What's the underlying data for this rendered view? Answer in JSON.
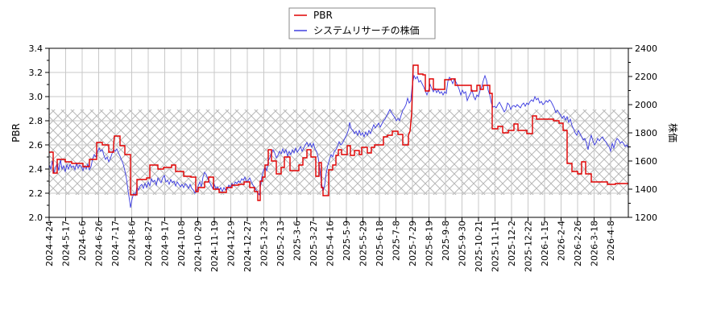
{
  "chart_data": {
    "type": "line",
    "title": "",
    "legend": {
      "position": "top-center",
      "entries": [
        {
          "label": "PBR",
          "color": "#e00000"
        },
        {
          "label": "システムリサーチの株価",
          "color": "#4040e0"
        }
      ]
    },
    "y_left": {
      "label": "PBR",
      "range": [
        2.0,
        3.4
      ],
      "ticks": [
        "2.0",
        "2.2",
        "2.4",
        "2.6",
        "2.8",
        "3.0",
        "3.2",
        "3.4"
      ]
    },
    "y_right": {
      "label": "株価",
      "range": [
        1200,
        2400
      ],
      "ticks": [
        "1200",
        "1400",
        "1600",
        "1800",
        "2000",
        "2200",
        "2400"
      ]
    },
    "x_ticks": [
      "2024-4-24",
      "2024-5-17",
      "2024-6-6",
      "2024-6-26",
      "2024-7-17",
      "2024-8-6",
      "2024-8-27",
      "2024-9-17",
      "2024-10-8",
      "2024-10-29",
      "2024-11-19",
      "2024-12-9",
      "2024-12-27",
      "2025-1-23",
      "2025-2-13",
      "2025-3-6",
      "2025-3-27",
      "2025-4-16",
      "2025-5-9",
      "2025-5-29",
      "2025-6-18",
      "2025-7-8",
      "2025-7-29",
      "2025-8-19",
      "2025-9-8",
      "2025-9-30",
      "2025-10-21",
      "2025-11-11",
      "2025-12-2",
      "2025-12-22",
      "2026-1-15",
      "2026-2-4",
      "2026-2-26",
      "2026-3-18",
      "2026-4-8"
    ],
    "grid": true,
    "hatched_band": {
      "pbr_range": [
        2.18,
        2.89
      ],
      "note": "shaded PBR reference range"
    },
    "series": [
      {
        "name": "PBR",
        "axis": "left",
        "color": "#e00000",
        "values_at_ticks": [
          2.45,
          2.49,
          2.46,
          2.52,
          2.62,
          2.17,
          2.33,
          2.4,
          2.33,
          2.28,
          2.2,
          2.28,
          2.23,
          2.53,
          2.38,
          2.37,
          2.17,
          2.44,
          2.58,
          2.58,
          2.64,
          2.73,
          3.26,
          3.15,
          3.17,
          3.11,
          3.08,
          2.74,
          2.72,
          2.83,
          2.81,
          2.45,
          2.4,
          2.28,
          2.28
        ]
      },
      {
        "name": "システムリサーチの株価",
        "axis": "right",
        "color": "#4040e0",
        "values_at_ticks": [
          1610,
          1580,
          1590,
          1630,
          1740,
          1330,
          1480,
          1530,
          1460,
          1450,
          1420,
          1450,
          1500,
          1570,
          1720,
          1730,
          1440,
          1620,
          1810,
          1840,
          1890,
          1900,
          2180,
          2050,
          2120,
          2060,
          2180,
          1970,
          1930,
          2000,
          1980,
          1880,
          1730,
          1680,
          1680
        ]
      }
    ]
  }
}
